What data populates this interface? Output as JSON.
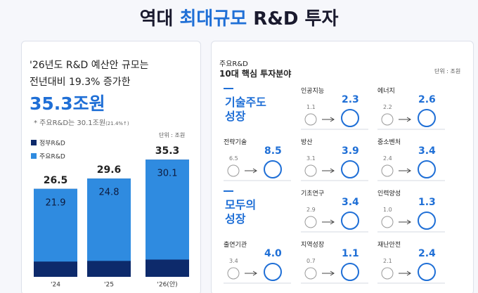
{
  "header": {
    "title_prefix": "역대 ",
    "title_highlight": "최대규모",
    "title_suffix": " R&D 투자"
  },
  "left": {
    "line1": "'26년도 R&D 예산안 규모는",
    "line2": "전년대비 19.3% 증가한",
    "amount": "35.3조원",
    "note": "* 주요R&D는 30.1조원",
    "note_small": "(21.4%↑)",
    "unit": "단위 : 조원"
  },
  "chart_data": {
    "type": "bar",
    "categories": [
      "'24",
      "'25",
      "'26(안)"
    ],
    "series": [
      {
        "name": "정부R&D",
        "color": "#0d2a6b",
        "values": [
          26.5,
          29.6,
          35.3
        ]
      },
      {
        "name": "주요R&D",
        "color": "#2f8be0",
        "values": [
          21.9,
          24.8,
          30.1
        ]
      }
    ],
    "ylim": [
      0,
      40
    ]
  },
  "right": {
    "title1": "주요R&D",
    "title2": "10대 핵심 투자분야",
    "unit": "단위 : 조원",
    "group_labels": [
      [
        "기술주도",
        "성장"
      ],
      [
        "모두의",
        "성장"
      ]
    ],
    "items": [
      {
        "label": "인공지능",
        "from": "1.1",
        "to": "2.3"
      },
      {
        "label": "에너지",
        "from": "2.2",
        "to": "2.6"
      },
      {
        "label": "전략기술",
        "from": "6.5",
        "to": "8.5"
      },
      {
        "label": "방산",
        "from": "3.1",
        "to": "3.9"
      },
      {
        "label": "중소벤처",
        "from": "2.4",
        "to": "3.4"
      },
      {
        "label": "기초연구",
        "from": "2.9",
        "to": "3.4"
      },
      {
        "label": "인력양성",
        "from": "1.0",
        "to": "1.3"
      },
      {
        "label": "출연기관",
        "from": "3.4",
        "to": "4.0"
      },
      {
        "label": "지역성장",
        "from": "0.7",
        "to": "1.1"
      },
      {
        "label": "재난안전",
        "from": "2.1",
        "to": "2.4"
      }
    ]
  }
}
